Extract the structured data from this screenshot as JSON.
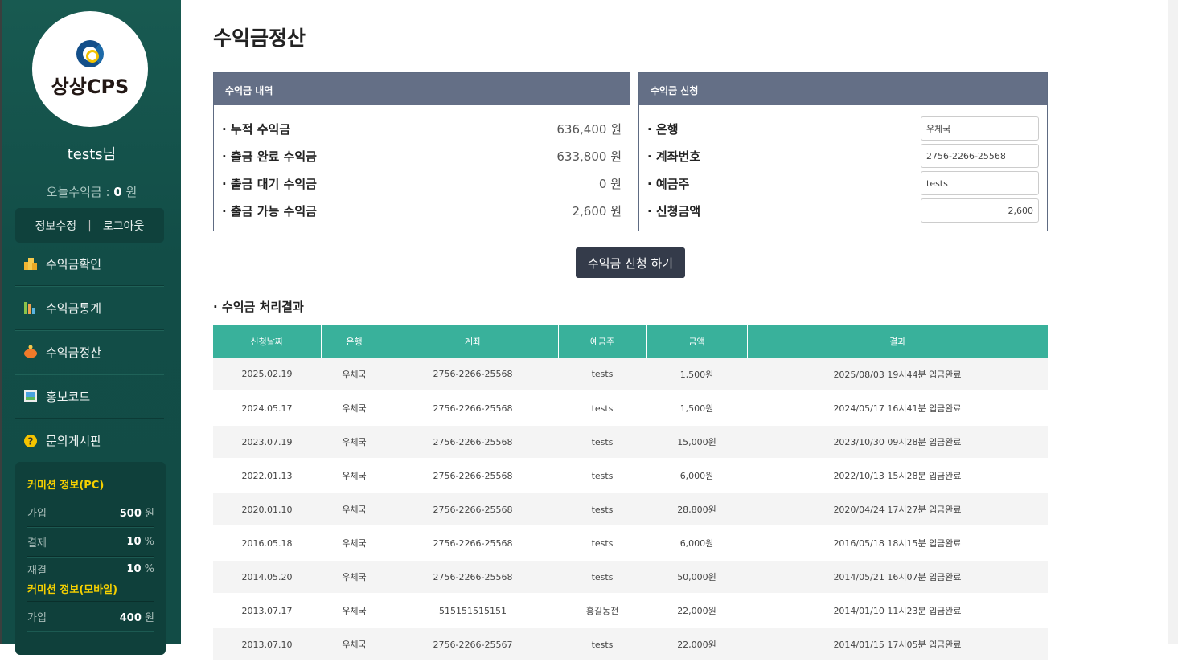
{
  "sidebar": {
    "logo_text": "상상CPS",
    "username": "tests님",
    "today_label": "오늘수익금 :",
    "today_value": "0",
    "today_unit": "원",
    "edit_info": "정보수정",
    "separator": "|",
    "logout": "로그아웃",
    "menu": [
      {
        "label": "수익금확인",
        "icon": "coins-icon"
      },
      {
        "label": "수익금통계",
        "icon": "bar-chart-icon"
      },
      {
        "label": "수익금정산",
        "icon": "piggy-bank-icon"
      },
      {
        "label": "홍보코드",
        "icon": "image-icon"
      },
      {
        "label": "문의게시판",
        "icon": "question-icon"
      }
    ],
    "commission_pc": {
      "title": "커미션 정보(PC)",
      "rows": [
        {
          "label": "가입",
          "value": "500",
          "unit": "원"
        },
        {
          "label": "결제",
          "value": "10",
          "unit": "%"
        },
        {
          "label": "재결",
          "value": "10",
          "unit": "%"
        }
      ]
    },
    "commission_mobile": {
      "title": "커미션 정보(모바일)",
      "rows": [
        {
          "label": "가입",
          "value": "400",
          "unit": "원"
        }
      ]
    }
  },
  "main": {
    "title": "수익금정산",
    "history": {
      "title": "수익금 내역",
      "rows": [
        {
          "label": "· 누적 수익금",
          "value": "636,400 원"
        },
        {
          "label": "· 출금 완료 수익금",
          "value": "633,800 원"
        },
        {
          "label": "· 출금 대기 수익금",
          "value": "0 원"
        },
        {
          "label": "· 출금 가능 수익금",
          "value": "2,600 원"
        }
      ]
    },
    "request": {
      "title": "수익금 신청",
      "fields": [
        {
          "label": "· 은행",
          "value": "우체국"
        },
        {
          "label": "· 계좌번호",
          "value": "2756-2266-25568"
        },
        {
          "label": "· 예금주",
          "value": "tests"
        },
        {
          "label": "· 신청금액",
          "value": "2,600"
        }
      ]
    },
    "submit_label": "수익금 신청 하기",
    "results_title": "· 수익금 처리결과",
    "table": {
      "headers": [
        "신청날짜",
        "은행",
        "계좌",
        "예금주",
        "금액",
        "결과"
      ],
      "rows": [
        [
          "2025.02.19",
          "우체국",
          "2756-2266-25568",
          "tests",
          "1,500원",
          "2025/08/03 19시44분 입금완료"
        ],
        [
          "2024.05.17",
          "우체국",
          "2756-2266-25568",
          "tests",
          "1,500원",
          "2024/05/17 16시41분 입금완료"
        ],
        [
          "2023.07.19",
          "우체국",
          "2756-2266-25568",
          "tests",
          "15,000원",
          "2023/10/30 09시28분 입금완료"
        ],
        [
          "2022.01.13",
          "우체국",
          "2756-2266-25568",
          "tests",
          "6,000원",
          "2022/10/13 15시28분 입금완료"
        ],
        [
          "2020.01.10",
          "우체국",
          "2756-2266-25568",
          "tests",
          "28,800원",
          "2020/04/24 17시27분 입금완료"
        ],
        [
          "2016.05.18",
          "우체국",
          "2756-2266-25568",
          "tests",
          "6,000원",
          "2016/05/18 18시15분 입금완료"
        ],
        [
          "2014.05.20",
          "우체국",
          "2756-2266-25568",
          "tests",
          "50,000원",
          "2014/05/21 16시07분 입금완료"
        ],
        [
          "2013.07.17",
          "우체국",
          "515151515151",
          "홍길동전",
          "22,000원",
          "2014/01/10 11시23분 입금완료"
        ],
        [
          "2013.07.10",
          "우체국",
          "2756-2266-25567",
          "tests",
          "22,000원",
          "2014/01/15 17시05분 입금완료"
        ]
      ]
    }
  },
  "colors": {
    "sidebar": "#134e48",
    "panel_header": "#646f86",
    "table_header": "#39b19b",
    "button": "#343b4a",
    "commission_title": "#f5d000"
  }
}
